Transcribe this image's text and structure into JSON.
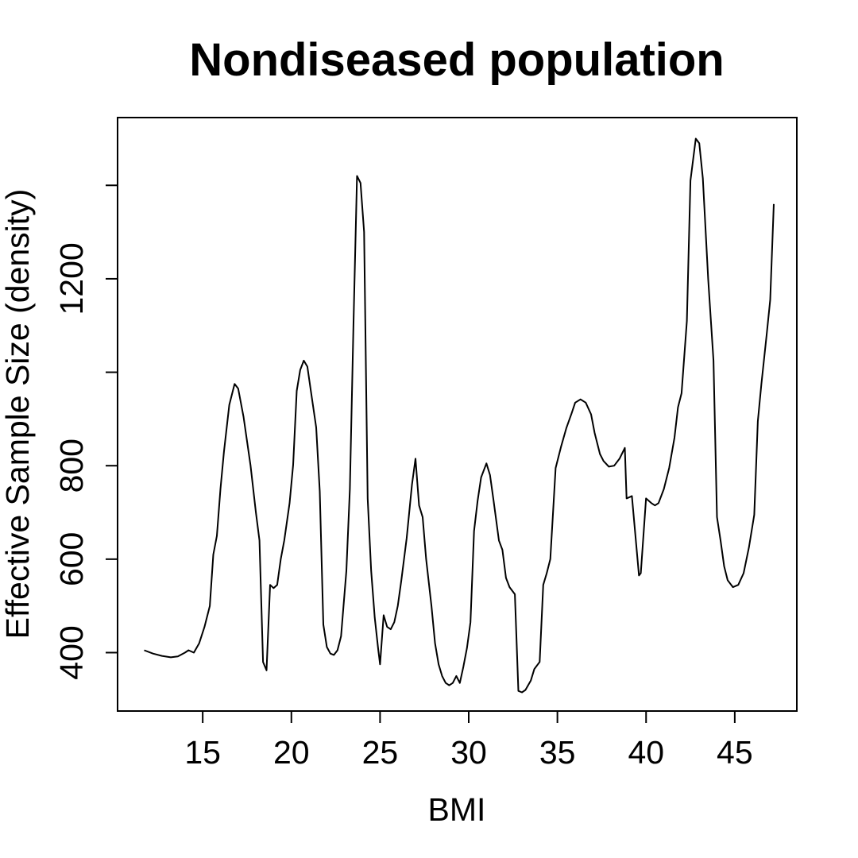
{
  "chart_data": {
    "type": "line",
    "title": "Nondiseased population",
    "xlabel": "BMI",
    "ylabel": "Effective Sample Size (density)",
    "xlim": [
      10.2,
      48.5
    ],
    "ylim": [
      275,
      1545
    ],
    "xticks": [
      15,
      20,
      25,
      30,
      35,
      40,
      45
    ],
    "yticks": [
      400,
      600,
      800,
      1000,
      1200,
      1400
    ],
    "ytick_labels": [
      "400",
      "600",
      "800",
      "",
      "1200",
      ""
    ],
    "grid": false,
    "legend": "none",
    "series": [
      {
        "color": "#000000",
        "x": [
          11.7,
          12.2,
          12.7,
          13.2,
          13.6,
          14.0,
          14.2,
          14.5,
          14.8,
          15.1,
          15.4,
          15.6,
          15.8,
          16.0,
          16.2,
          16.5,
          16.8,
          17.0,
          17.3,
          17.7,
          18.0,
          18.2,
          18.4,
          18.6,
          18.8,
          19.0,
          19.2,
          19.4,
          19.6,
          19.9,
          20.1,
          20.3,
          20.5,
          20.7,
          20.9,
          21.1,
          21.4,
          21.6,
          21.8,
          22.0,
          22.2,
          22.4,
          22.6,
          22.8,
          23.1,
          23.3,
          23.5,
          23.7,
          23.9,
          24.1,
          24.3,
          24.5,
          24.7,
          24.9,
          25.0,
          25.2,
          25.4,
          25.6,
          25.8,
          26.0,
          26.2,
          26.5,
          26.8,
          27.0,
          27.2,
          27.4,
          27.6,
          27.9,
          28.1,
          28.3,
          28.5,
          28.7,
          28.9,
          29.1,
          29.3,
          29.5,
          29.7,
          29.9,
          30.1,
          30.3,
          30.5,
          30.7,
          31.0,
          31.2,
          31.4,
          31.7,
          31.9,
          32.1,
          32.3,
          32.6,
          32.8,
          33.0,
          33.2,
          33.5,
          33.7,
          34.0,
          34.2,
          34.4,
          34.6,
          34.9,
          35.2,
          35.5,
          35.8,
          36.0,
          36.3,
          36.6,
          36.9,
          37.1,
          37.4,
          37.6,
          37.9,
          38.2,
          38.5,
          38.8,
          38.9,
          39.2,
          39.6,
          39.7,
          40.0,
          40.3,
          40.5,
          40.7,
          41.0,
          41.3,
          41.6,
          41.8,
          42.0,
          42.3,
          42.5,
          42.8,
          43.0,
          43.2,
          43.5,
          43.8,
          44.0,
          44.2,
          44.4,
          44.6,
          44.9,
          45.2,
          45.5,
          45.8,
          46.1,
          46.3,
          46.5,
          46.8,
          47.0,
          47.2
        ],
        "y": [
          405,
          398,
          393,
          390,
          392,
          400,
          405,
          400,
          420,
          455,
          500,
          610,
          650,
          750,
          830,
          930,
          975,
          965,
          905,
          800,
          700,
          640,
          380,
          362,
          545,
          538,
          545,
          600,
          640,
          720,
          802,
          960,
          1005,
          1025,
          1012,
          960,
          882,
          745,
          460,
          412,
          398,
          395,
          405,
          435,
          575,
          750,
          1100,
          1420,
          1405,
          1300,
          730,
          575,
          475,
          405,
          375,
          480,
          455,
          450,
          465,
          500,
          555,
          645,
          760,
          815,
          715,
          690,
          600,
          500,
          420,
          375,
          350,
          335,
          330,
          335,
          350,
          335,
          370,
          410,
          465,
          660,
          725,
          775,
          805,
          780,
          725,
          640,
          620,
          560,
          540,
          525,
          318,
          315,
          320,
          340,
          365,
          380,
          545,
          570,
          600,
          795,
          840,
          880,
          912,
          935,
          942,
          935,
          910,
          870,
          825,
          810,
          798,
          800,
          815,
          838,
          730,
          735,
          565,
          570,
          730,
          720,
          715,
          720,
          750,
          795,
          860,
          925,
          955,
          1110,
          1410,
          1500,
          1490,
          1415,
          1200,
          1025,
          690,
          640,
          585,
          555,
          540,
          545,
          570,
          625,
          695,
          895,
          975,
          1080,
          1155,
          1360
        ]
      }
    ]
  }
}
